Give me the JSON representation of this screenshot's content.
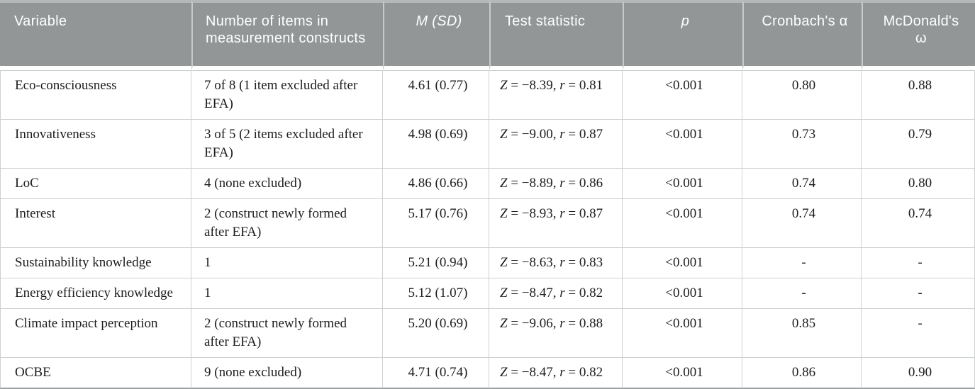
{
  "colors": {
    "header_bg": "#929697",
    "header_strip": "#b5b8b9",
    "header_divider": "#c7caca",
    "header_text": "#ffffff",
    "grid_line": "#cdd0d0",
    "bottom_border": "#9da2a3",
    "body_text": "#1d1d1d"
  },
  "table": {
    "columns": [
      {
        "id": "variable",
        "label": "Variable",
        "italic": false,
        "align": "left"
      },
      {
        "id": "items",
        "label": "Number of items in measurement constructs",
        "italic": false,
        "align": "left"
      },
      {
        "id": "m-sd",
        "label": "M (SD)",
        "italic": true,
        "align": "center"
      },
      {
        "id": "test",
        "label": "Test statistic",
        "italic": false,
        "align": "left"
      },
      {
        "id": "p",
        "label": "p",
        "italic": true,
        "align": "center"
      },
      {
        "id": "cronbach",
        "label": "Cronbach's α",
        "italic": false,
        "align": "center"
      },
      {
        "id": "mcdonald",
        "label": "McDonald's ω",
        "italic": false,
        "align": "center"
      }
    ],
    "test_format": {
      "z_label": "Z",
      "r_label": "r",
      "eq": " = ",
      "sep": ", "
    },
    "rows": [
      {
        "variable": "Eco-consciousness",
        "items": "7 of 8 (1 item excluded after EFA)",
        "m_sd": "4.61 (0.77)",
        "test": {
          "z": "−8.39",
          "r": "0.81"
        },
        "p": "<0.001",
        "cronbach": "0.80",
        "mcdonald": "0.88"
      },
      {
        "variable": "Innovativeness",
        "items": "3 of 5 (2 items excluded after EFA)",
        "m_sd": "4.98 (0.69)",
        "test": {
          "z": "−9.00",
          "r": "0.87"
        },
        "p": "<0.001",
        "cronbach": "0.73",
        "mcdonald": "0.79"
      },
      {
        "variable": "LoC",
        "items": "4 (none excluded)",
        "m_sd": "4.86 (0.66)",
        "test": {
          "z": "−8.89",
          "r": "0.86"
        },
        "p": "<0.001",
        "cronbach": "0.74",
        "mcdonald": "0.80"
      },
      {
        "variable": "Interest",
        "items": "2 (construct newly formed after EFA)",
        "m_sd": "5.17 (0.76)",
        "test": {
          "z": "−8.93",
          "r": "0.87"
        },
        "p": "<0.001",
        "cronbach": "0.74",
        "mcdonald": "0.74"
      },
      {
        "variable": "Sustainability knowledge",
        "items": "1",
        "m_sd": "5.21 (0.94)",
        "test": {
          "z": "−8.63",
          "r": "0.83"
        },
        "p": "<0.001",
        "cronbach": "-",
        "mcdonald": "-"
      },
      {
        "variable": "Energy efficiency knowledge",
        "items": "1",
        "m_sd": "5.12 (1.07)",
        "test": {
          "z": "−8.47",
          "r": "0.82"
        },
        "p": "<0.001",
        "cronbach": "-",
        "mcdonald": "-"
      },
      {
        "variable": "Climate impact perception",
        "items": "2 (construct newly formed after EFA)",
        "m_sd": "5.20 (0.69)",
        "test": {
          "z": "−9.06",
          "r": "0.88"
        },
        "p": "<0.001",
        "cronbach": "0.85",
        "mcdonald": "-"
      },
      {
        "variable": "OCBE",
        "items": "9 (none excluded)",
        "m_sd": "4.71 (0.74)",
        "test": {
          "z": "−8.47",
          "r": "0.82"
        },
        "p": "<0.001",
        "cronbach": "0.86",
        "mcdonald": "0.90"
      }
    ]
  }
}
